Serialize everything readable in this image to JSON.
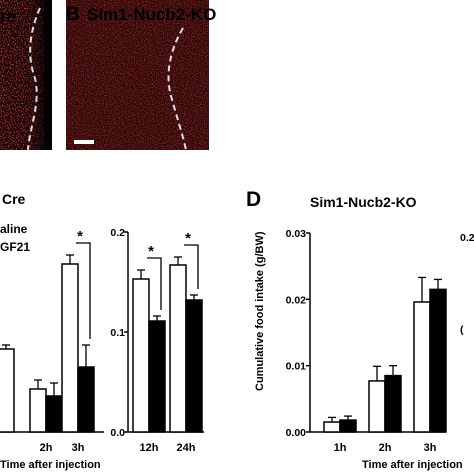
{
  "micrographs": {
    "left_label": "re",
    "right_letter": "B",
    "right_label": "Sim1-Nucb2-KO"
  },
  "panel_c": {
    "title": "Cre",
    "legend": [
      "aline",
      "GF21"
    ]
  },
  "panel_d": {
    "letter": "D",
    "title": "Sim1-Nucb2-KO"
  },
  "shared": {
    "xlabel": "Time after injection",
    "ylabel_d": "Cumulative food intake (g/BW)"
  },
  "chart_data": [
    {
      "type": "bar",
      "panel": "C-left (cropped)",
      "categories": [
        "",
        "2h",
        "3h"
      ],
      "series": [
        {
          "values": [
            0.083,
            0.043,
            0.168
          ],
          "errors": [
            0.004,
            0.009,
            0.009
          ],
          "fill": "#ffffff"
        },
        {
          "values": [
            null,
            0.036,
            0.065
          ],
          "errors": [
            null,
            0.013,
            0.022
          ],
          "fill": "#000000"
        }
      ],
      "significance": [
        "",
        "",
        "*"
      ],
      "yticks": [],
      "ylim": [
        0,
        0.2
      ]
    },
    {
      "type": "bar",
      "panel": "C-right",
      "categories": [
        "12h",
        "24h"
      ],
      "series": [
        {
          "values": [
            0.153,
            0.167
          ],
          "errors": [
            0.009,
            0.008
          ],
          "fill": "#ffffff"
        },
        {
          "values": [
            0.111,
            0.132
          ],
          "errors": [
            0.005,
            0.005
          ],
          "fill": "#000000"
        }
      ],
      "significance": [
        "*",
        "*"
      ],
      "yticks": [
        "0.0",
        "0.1",
        "0.2"
      ],
      "ylim": [
        0,
        0.2
      ]
    },
    {
      "type": "bar",
      "panel": "D",
      "categories": [
        "1h",
        "2h",
        "3h"
      ],
      "series": [
        {
          "values": [
            0.0015,
            0.0077,
            0.0196
          ],
          "errors": [
            0.0007,
            0.0022,
            0.0037
          ],
          "fill": "#ffffff"
        },
        {
          "values": [
            0.0018,
            0.0085,
            0.0215
          ],
          "errors": [
            0.0006,
            0.0015,
            0.0015
          ],
          "fill": "#000000"
        }
      ],
      "significance": [
        "",
        "",
        ""
      ],
      "yticks": [
        "0.00",
        "0.01",
        "0.02",
        "0.03"
      ],
      "ylim": [
        0,
        0.03
      ]
    }
  ],
  "right_edge_tick": "0.2"
}
